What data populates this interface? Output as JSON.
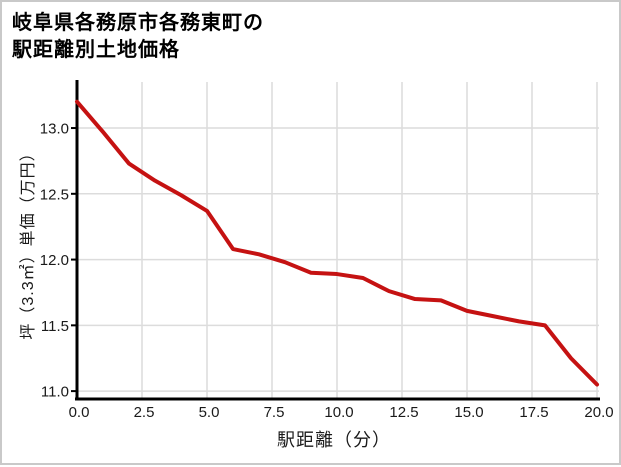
{
  "header": {
    "title_line1": "岐阜県各務原市各務東町の",
    "title_line2": "駅距離別土地価格"
  },
  "chart_data": {
    "type": "line",
    "title": "岐阜県各務原市各務東町の駅距離別土地価格",
    "xlabel": "駅距離（分）",
    "ylabel": "坪（3.3㎡）単価（万円）",
    "x": [
      0,
      1,
      2,
      3,
      4,
      5,
      6,
      7,
      8,
      9,
      10,
      11,
      12,
      13,
      14,
      15,
      16,
      17,
      18,
      19,
      20
    ],
    "values": [
      13.2,
      12.97,
      12.73,
      12.6,
      12.49,
      12.37,
      12.08,
      12.04,
      11.98,
      11.9,
      11.89,
      11.86,
      11.76,
      11.7,
      11.69,
      11.61,
      11.57,
      11.53,
      11.5,
      11.25,
      11.05
    ],
    "xlim": [
      0,
      20
    ],
    "ylim": [
      10.94,
      13.35
    ],
    "xticks": [
      0,
      2.5,
      5,
      7.5,
      10,
      12.5,
      15,
      17.5,
      20
    ],
    "xtick_labels": [
      "0.0",
      "2.5",
      "5.0",
      "7.5",
      "10.0",
      "12.5",
      "15.0",
      "17.5",
      "20.0"
    ],
    "yticks": [
      11,
      11.5,
      12,
      12.5,
      13
    ],
    "ytick_labels": [
      "11.0",
      "11.5",
      "12.0",
      "12.5",
      "13.0"
    ],
    "grid": true,
    "legend": "none",
    "line_color": "#c51212"
  },
  "colors": {
    "background": "#ffffff",
    "frame_border": "#c9c9c9",
    "grid": "#dcdcdc",
    "axis": "#000000",
    "tick_text": "#1a1a1a",
    "line": "#c51212"
  }
}
